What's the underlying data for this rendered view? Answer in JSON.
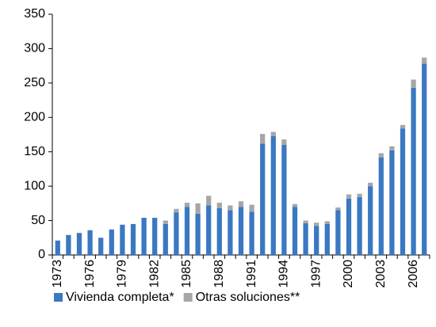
{
  "chart_data": {
    "type": "stacked-bar",
    "categories": [
      "1973",
      null,
      null,
      "1976",
      null,
      null,
      "1979",
      null,
      null,
      "1982",
      null,
      null,
      "1985",
      null,
      null,
      "1988",
      null,
      null,
      "1991",
      null,
      null,
      "1994",
      null,
      null,
      "1997",
      null,
      null,
      "2000",
      null,
      null,
      "2003",
      null,
      null,
      "2006",
      null
    ],
    "series": [
      {
        "name": "Vivienda completa*",
        "color": "#3a78c2",
        "values": [
          21,
          29,
          32,
          36,
          25,
          37,
          44,
          45,
          54,
          54,
          45,
          62,
          70,
          60,
          72,
          68,
          65,
          70,
          63,
          162,
          173,
          160,
          70,
          46,
          42,
          45,
          65,
          82,
          84,
          100,
          142,
          152,
          184,
          243,
          278
        ]
      },
      {
        "name": "Otras soluciones**",
        "color": "#a6a6a6",
        "values": [
          0,
          0,
          0,
          0,
          0,
          0,
          0,
          0,
          0,
          0,
          5,
          5,
          6,
          15,
          14,
          8,
          7,
          8,
          10,
          14,
          6,
          8,
          4,
          4,
          5,
          4,
          4,
          6,
          5,
          5,
          6,
          6,
          5,
          12,
          9
        ]
      }
    ],
    "ylim": [
      0,
      350
    ],
    "yticks": [
      0,
      50,
      100,
      150,
      200,
      250,
      300,
      350
    ],
    "grid": false,
    "legend": "bottom"
  }
}
